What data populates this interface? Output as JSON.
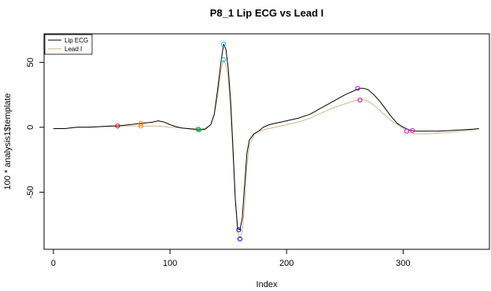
{
  "chart_data": {
    "type": "line",
    "title": "P8_1 Lip ECG vs Lead I",
    "xlabel": "Index",
    "ylabel": "100 * analysis1$template",
    "xlim": [
      -8,
      374
    ],
    "ylim": [
      -94,
      72
    ],
    "x_ticks": [
      0,
      100,
      200,
      300
    ],
    "y_ticks": [
      -50,
      0,
      50
    ],
    "grid": false,
    "legend": {
      "position": "top-left",
      "entries": [
        {
          "label": "Lip ECG",
          "color": "#000000"
        },
        {
          "label": "Lead I",
          "color": "#d2b48c"
        }
      ]
    },
    "series": [
      {
        "name": "Lip ECG",
        "color": "#000000",
        "x": [
          0,
          10,
          20,
          30,
          40,
          50,
          55,
          60,
          65,
          70,
          75,
          80,
          85,
          90,
          95,
          100,
          105,
          110,
          115,
          120,
          125,
          130,
          135,
          138,
          141,
          144,
          146,
          148,
          150,
          152,
          154,
          156,
          158,
          160,
          162,
          164,
          166,
          168,
          172,
          176,
          180,
          185,
          190,
          200,
          210,
          220,
          230,
          240,
          250,
          260,
          263,
          266,
          270,
          275,
          280,
          285,
          290,
          295,
          300,
          305,
          310,
          320,
          330,
          340,
          350,
          360,
          365
        ],
        "y": [
          -1,
          -1,
          0,
          0,
          0.5,
          1,
          1,
          1.5,
          2,
          2.5,
          3,
          3.5,
          4,
          5,
          4,
          2,
          0.5,
          -0.5,
          -1,
          -1.5,
          -2,
          -1.5,
          2,
          10,
          30,
          52,
          64,
          60,
          45,
          20,
          -15,
          -55,
          -78,
          -79,
          -70,
          -45,
          -20,
          -10,
          -5,
          -3,
          0,
          2,
          3,
          5,
          7,
          10,
          15,
          20,
          25,
          29,
          30,
          30,
          29,
          25,
          20,
          14,
          8,
          3,
          0,
          -2,
          -3,
          -3,
          -3,
          -2.5,
          -2,
          -1.5,
          -1
        ]
      },
      {
        "name": "Lead I",
        "color": "#d2b48c",
        "x": [
          0,
          10,
          20,
          30,
          40,
          50,
          55,
          60,
          70,
          75,
          80,
          90,
          100,
          110,
          120,
          125,
          130,
          135,
          138,
          141,
          144,
          146,
          148,
          150,
          152,
          154,
          156,
          158,
          160,
          162,
          164,
          166,
          168,
          172,
          176,
          180,
          190,
          200,
          210,
          220,
          230,
          240,
          250,
          260,
          265,
          270,
          275,
          280,
          290,
          300,
          305,
          310,
          320,
          330,
          340,
          350,
          360,
          365
        ],
        "y": [
          -1,
          -1,
          0,
          0,
          0.5,
          1,
          1,
          1,
          1,
          1,
          1,
          1,
          0,
          -0.5,
          -1,
          -1.5,
          -1,
          2,
          10,
          25,
          45,
          52,
          48,
          38,
          15,
          -20,
          -55,
          -80,
          -86,
          -80,
          -60,
          -30,
          -14,
          -6,
          -3,
          -2,
          0,
          2,
          4,
          7,
          11,
          15,
          18,
          21,
          21.5,
          20,
          17,
          13,
          5,
          -1,
          -4,
          -5,
          -5,
          -4.5,
          -4,
          -3,
          -2,
          -1
        ]
      }
    ],
    "markers": [
      {
        "x": 55,
        "y": 1,
        "color": "#ff0000"
      },
      {
        "x": 75,
        "y": 3,
        "color": "#ff8c00"
      },
      {
        "x": 75,
        "y": 1,
        "color": "#ff8c00"
      },
      {
        "x": 124,
        "y": -1.5,
        "color": "#00b050"
      },
      {
        "x": 125,
        "y": -2,
        "color": "#00b050"
      },
      {
        "x": 146,
        "y": 64,
        "color": "#00bfff"
      },
      {
        "x": 146,
        "y": 52,
        "color": "#00bfff"
      },
      {
        "x": 159,
        "y": -79,
        "color": "#0000ff"
      },
      {
        "x": 160,
        "y": -86,
        "color": "#0000ff"
      },
      {
        "x": 261,
        "y": 30,
        "color": "#cc00cc"
      },
      {
        "x": 263,
        "y": 21,
        "color": "#cc00cc"
      },
      {
        "x": 303,
        "y": -3,
        "color": "#ff00ff"
      },
      {
        "x": 308,
        "y": -2.5,
        "color": "#ff00ff"
      }
    ]
  }
}
